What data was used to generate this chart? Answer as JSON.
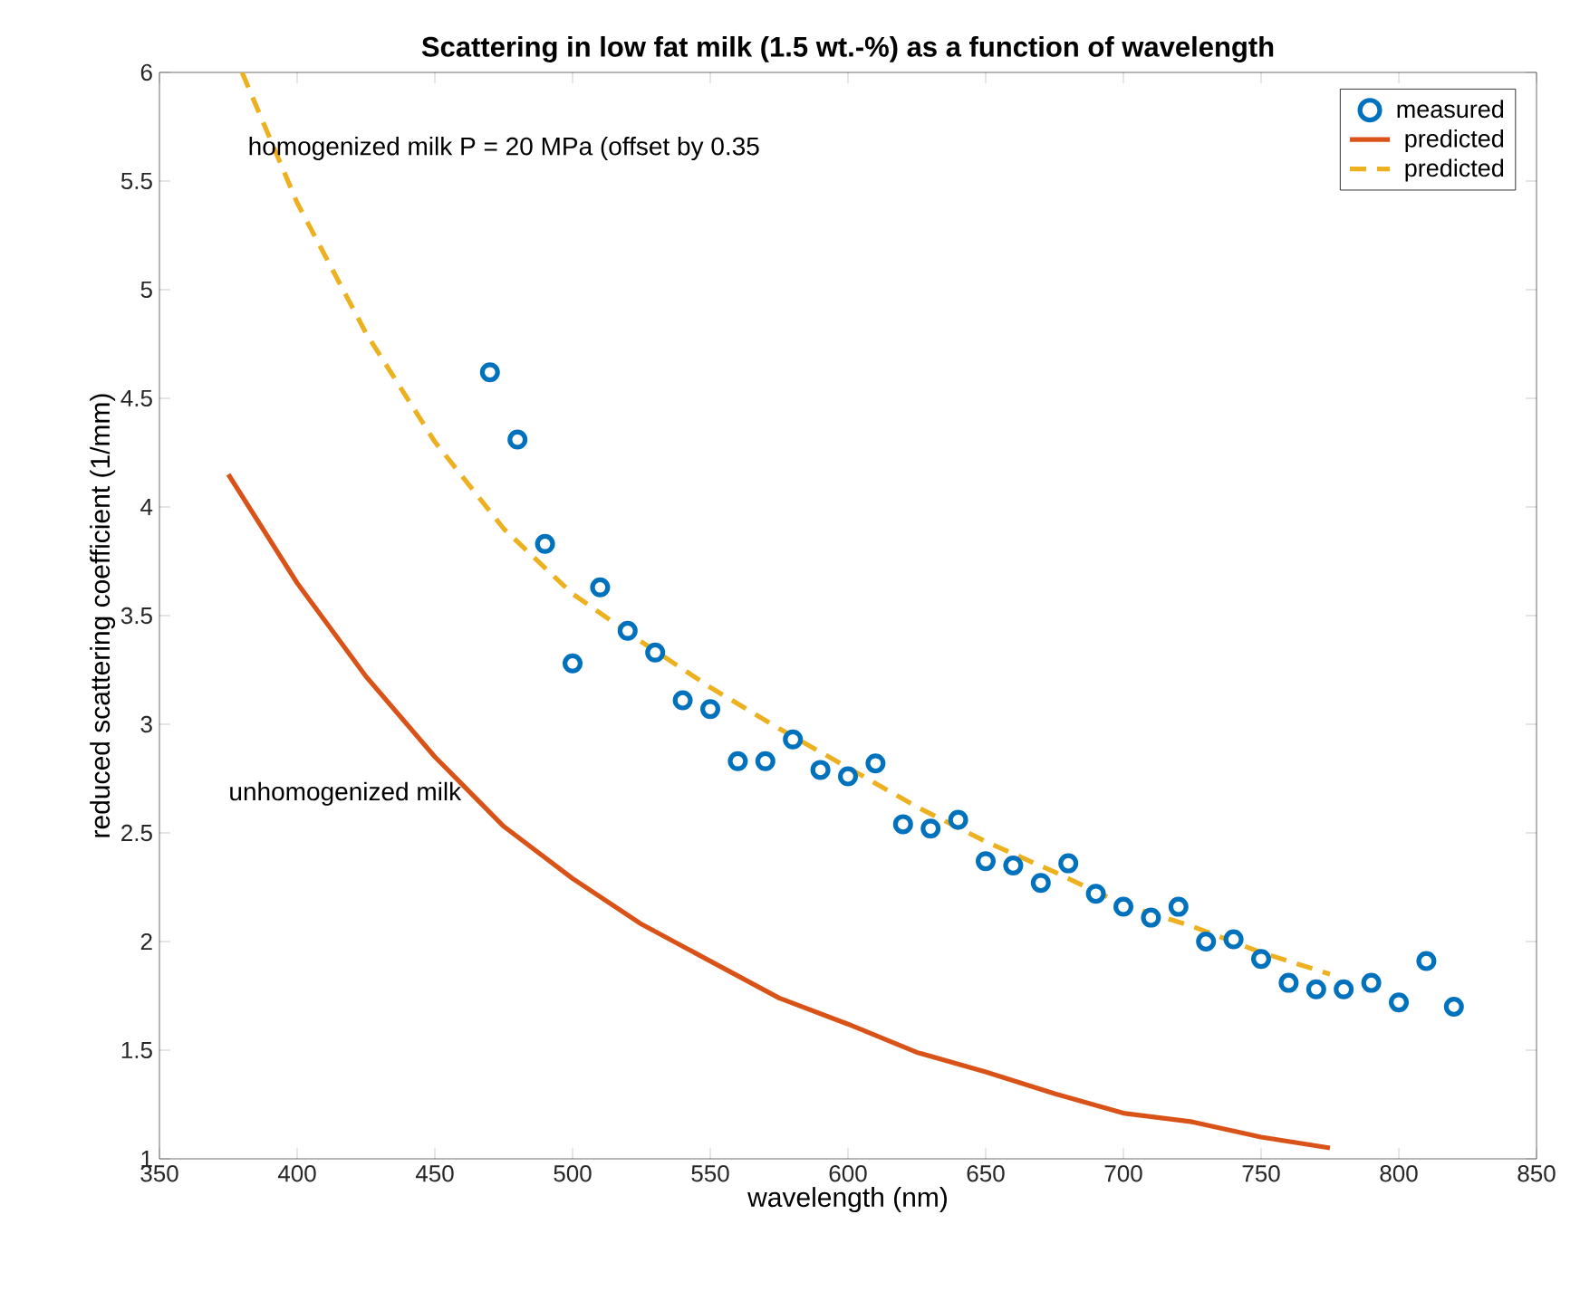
{
  "chart_data": {
    "type": "scatter",
    "title": "Scattering in low fat milk (1.5 wt.-%) as a function of wavelength",
    "xlabel": "wavelength (nm)",
    "ylabel": "reduced scattering coefficient (1/mm)",
    "xlim": [
      350,
      850
    ],
    "ylim": [
      1,
      6
    ],
    "xticks": [
      350,
      400,
      450,
      500,
      550,
      600,
      650,
      700,
      750,
      800,
      850
    ],
    "yticks": [
      1,
      1.5,
      2,
      2.5,
      3,
      3.5,
      4,
      4.5,
      5,
      5.5,
      6
    ],
    "legend": "top right",
    "grid": false,
    "series": [
      {
        "name": "measured",
        "marker": "circle",
        "color": "#0072bd",
        "x": [
          470,
          480,
          490,
          500,
          510,
          520,
          530,
          540,
          550,
          560,
          570,
          580,
          590,
          600,
          610,
          620,
          630,
          640,
          650,
          660,
          670,
          680,
          690,
          700,
          710,
          720,
          730,
          740,
          750,
          760,
          770,
          780,
          790,
          800,
          810,
          820
        ],
        "values": [
          4.62,
          4.31,
          3.83,
          3.28,
          3.63,
          3.43,
          3.33,
          3.11,
          3.07,
          2.83,
          2.83,
          2.93,
          2.79,
          2.76,
          2.82,
          2.54,
          2.52,
          2.56,
          2.37,
          2.35,
          2.27,
          2.36,
          2.22,
          2.16,
          2.11,
          2.16,
          2.0,
          2.01,
          1.92,
          1.81,
          1.78,
          1.78,
          1.81,
          1.72,
          1.91,
          1.7
        ]
      },
      {
        "name": "predicted",
        "type": "line",
        "marker": "none",
        "line_style": "solid",
        "color": "#d95319",
        "x": [
          375,
          400,
          425,
          450,
          475,
          500,
          525,
          550,
          575,
          600,
          625,
          650,
          675,
          700,
          725,
          750,
          775
        ],
        "values": [
          4.15,
          3.65,
          3.22,
          2.85,
          2.53,
          2.29,
          2.08,
          1.91,
          1.74,
          1.62,
          1.49,
          1.4,
          1.3,
          1.21,
          1.17,
          1.1,
          1.05
        ]
      },
      {
        "name": "predicted",
        "type": "line",
        "marker": "none",
        "line_style": "dashed",
        "color": "#edb120",
        "x": [
          380,
          400,
          425,
          450,
          475,
          500,
          525,
          550,
          575,
          600,
          625,
          650,
          675,
          700,
          725,
          750,
          775
        ],
        "values": [
          6.0,
          5.4,
          4.8,
          4.3,
          3.9,
          3.6,
          3.38,
          3.17,
          2.98,
          2.8,
          2.62,
          2.46,
          2.32,
          2.17,
          2.07,
          1.95,
          1.85
        ]
      }
    ],
    "annotations": [
      "homogenized milk P = 20 MPa (offset by 0.35",
      "unhomogenized milk"
    ]
  }
}
